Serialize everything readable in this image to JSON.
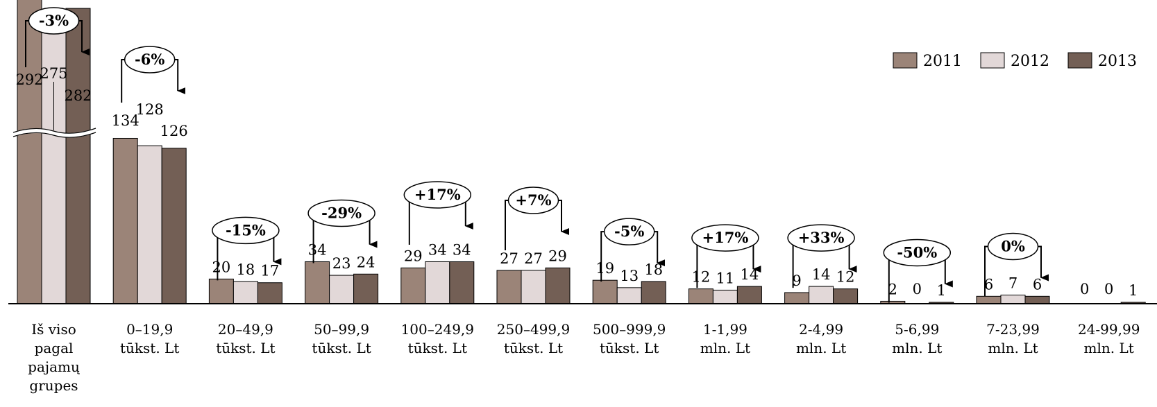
{
  "chart_data": {
    "type": "bar",
    "colors": {
      "2011": "#9b8478",
      "2012": "#e2d8d8",
      "2013": "#735f55"
    },
    "categories": [
      [
        "Iš viso",
        "pagal",
        "pajamų",
        "grupes"
      ],
      [
        "0–19,9",
        "tūkst. Lt"
      ],
      [
        "20–49,9",
        "tūkst.  Lt"
      ],
      [
        "50–99,9",
        "tūkst. Lt"
      ],
      [
        "100–249,9",
        "tūkst. Lt"
      ],
      [
        "250–499,9",
        "tūkst. Lt"
      ],
      [
        "500–999,9",
        "tūkst. Lt"
      ],
      [
        "1-1,99",
        "mln. Lt"
      ],
      [
        "2-4,99",
        "mln. Lt"
      ],
      [
        "5-6,99",
        "mln. Lt"
      ],
      [
        "7-23,99",
        "mln. Lt"
      ],
      [
        "24-99,99",
        "mln. Lt"
      ]
    ],
    "series": [
      {
        "name": "2011",
        "values": [
          292,
          134,
          20,
          34,
          29,
          27,
          19,
          12,
          9,
          2,
          6,
          0
        ]
      },
      {
        "name": "2012",
        "values": [
          275,
          128,
          18,
          23,
          34,
          27,
          13,
          11,
          14,
          0,
          7,
          0
        ]
      },
      {
        "name": "2013",
        "values": [
          282,
          126,
          17,
          24,
          34,
          29,
          18,
          14,
          12,
          1,
          6,
          1
        ]
      }
    ],
    "changes": [
      "-3%",
      "-6%",
      "-15%",
      "-29%",
      "+17%",
      "+7%",
      "-5%",
      "+17%",
      "+33%",
      "-50%",
      "0%",
      ""
    ],
    "axis_break": "first category (broken y-axis)",
    "legend_position": "top-right",
    "grid": false
  }
}
